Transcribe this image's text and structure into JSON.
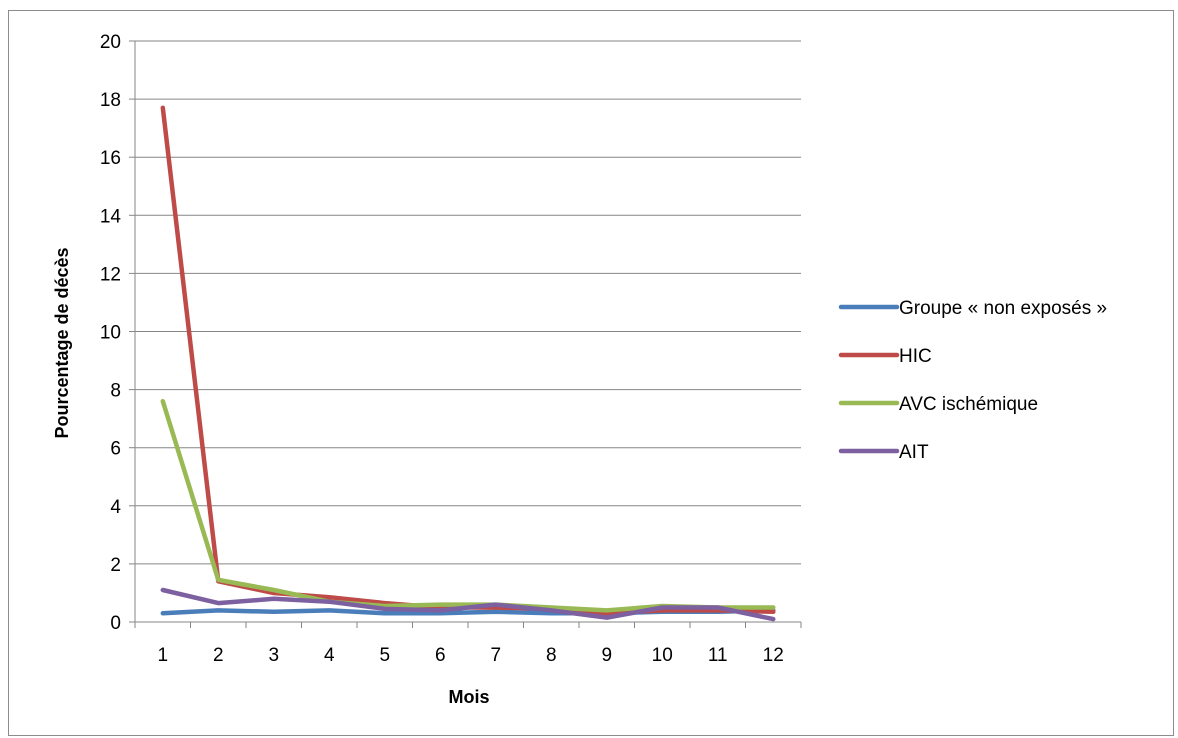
{
  "chart_data": {
    "type": "line",
    "title": "",
    "xlabel": "Mois",
    "ylabel": "Pourcentage de décès",
    "categories": [
      "1",
      "2",
      "3",
      "4",
      "5",
      "6",
      "7",
      "8",
      "9",
      "10",
      "11",
      "12"
    ],
    "ylim": [
      0,
      20
    ],
    "yticks": [
      "0",
      "2",
      "4",
      "6",
      "8",
      "10",
      "12",
      "14",
      "16",
      "18",
      "20"
    ],
    "grid": "horizontal",
    "legend_position": "right",
    "series": [
      {
        "name": "Groupe « non exposés »",
        "color": "#4a7ebb",
        "values": [
          0.3,
          0.4,
          0.35,
          0.4,
          0.3,
          0.3,
          0.35,
          0.3,
          0.3,
          0.35,
          0.35,
          0.4
        ]
      },
      {
        "name": "HIC",
        "color": "#be4b48",
        "values": [
          17.7,
          1.4,
          1.0,
          0.85,
          0.65,
          0.5,
          0.5,
          0.45,
          0.3,
          0.4,
          0.4,
          0.35
        ]
      },
      {
        "name": "AVC ischémique",
        "color": "#98b954",
        "values": [
          7.6,
          1.45,
          1.1,
          0.7,
          0.55,
          0.6,
          0.6,
          0.5,
          0.4,
          0.55,
          0.5,
          0.5
        ]
      },
      {
        "name": "AIT",
        "color": "#7d60a0",
        "values": [
          1.1,
          0.65,
          0.8,
          0.7,
          0.45,
          0.4,
          0.6,
          0.4,
          0.15,
          0.5,
          0.5,
          0.1
        ]
      }
    ]
  }
}
